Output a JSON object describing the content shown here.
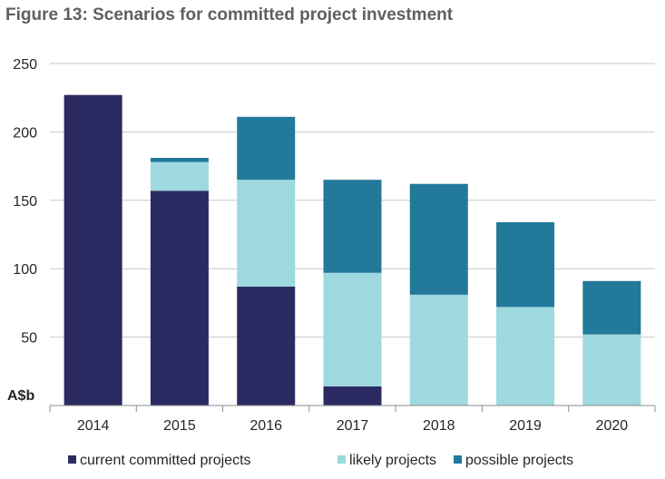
{
  "chart_data": {
    "type": "bar",
    "stacked": true,
    "title": "Figure 13: Scenarios for committed project investment",
    "ylabel": "A$b",
    "xlabel": "",
    "categories": [
      "2014",
      "2015",
      "2016",
      "2017",
      "2018",
      "2019",
      "2020"
    ],
    "ylim": [
      0,
      250
    ],
    "yticks": [
      "50",
      "100",
      "150",
      "200",
      "250"
    ],
    "grid": true,
    "legend_position": "bottom",
    "series": [
      {
        "name": "current committed projects",
        "color": "#2b2a62",
        "values": [
          227,
          157,
          87,
          14,
          0,
          0,
          0
        ]
      },
      {
        "name": "likely projects",
        "color": "#9ed9df",
        "values": [
          0,
          21,
          78,
          83,
          81,
          72,
          52
        ]
      },
      {
        "name": "possible projects",
        "color": "#22799a",
        "values": [
          0,
          3,
          46,
          68,
          81,
          62,
          39
        ]
      }
    ]
  }
}
